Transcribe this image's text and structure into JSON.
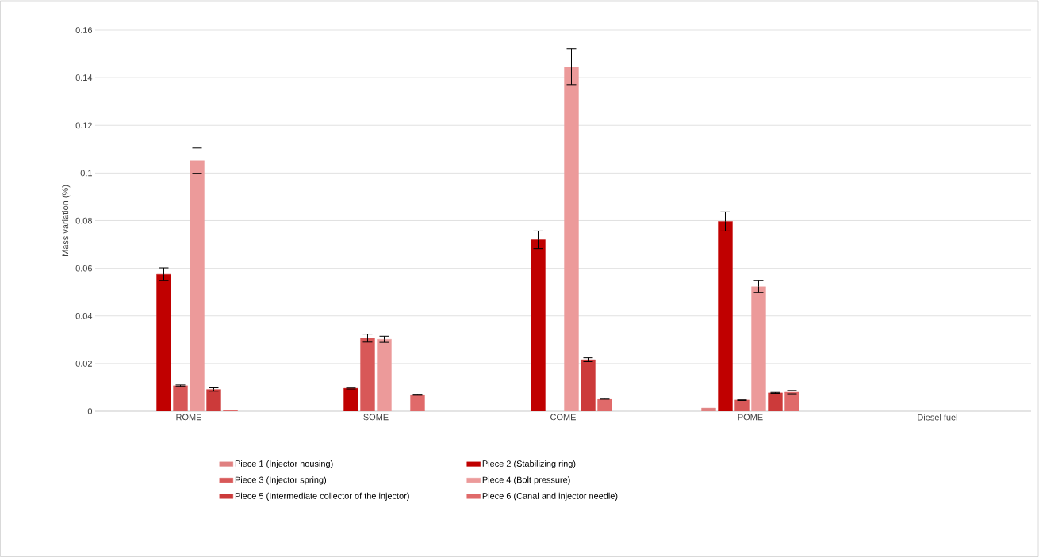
{
  "chart_data": {
    "type": "bar",
    "ylabel": "Mass variation (%)",
    "categories": [
      "ROME",
      "SOME",
      "COME",
      "POME",
      "Diesel fuel"
    ],
    "series": [
      {
        "name": "Piece 1 (Injector housing)",
        "color": "#e08080",
        "values": [
          null,
          null,
          null,
          0.0013,
          null
        ]
      },
      {
        "name": "Piece 2 (Stabilizing ring)",
        "color": "#c00000",
        "values": [
          0.0575,
          0.0096,
          0.072,
          0.0797,
          null
        ],
        "errors": [
          0.0027,
          0.0003,
          0.0037,
          0.004,
          null
        ]
      },
      {
        "name": "Piece 3 (Injector spring)",
        "color": "#d85858",
        "values": [
          0.0107,
          0.0307,
          null,
          0.0047,
          null
        ],
        "errors": [
          0.0003,
          0.0017,
          null,
          0.0002,
          null
        ]
      },
      {
        "name": "Piece 4 (Bolt pressure)",
        "color": "#ec9a9a",
        "values": [
          0.1052,
          0.0302,
          0.1446,
          0.0523,
          null
        ],
        "errors": [
          0.0053,
          0.0013,
          0.0075,
          0.0025,
          null
        ]
      },
      {
        "name": "Piece 5 (Intermediate collector of the injector)",
        "color": "#cc3a3a",
        "values": [
          0.0091,
          null,
          0.0216,
          0.0077,
          null
        ],
        "errors": [
          0.0007,
          null,
          0.0008,
          0.0002,
          null
        ]
      },
      {
        "name": "Piece 6 (Canal and injector needle)",
        "color": "#e06a6a",
        "values": [
          0.0004,
          0.0069,
          0.0052,
          0.008,
          null
        ],
        "errors": [
          null,
          0.0002,
          0.0002,
          0.0007,
          null
        ]
      }
    ],
    "ylim": [
      0,
      0.16
    ],
    "yticks": [
      0,
      0.02,
      0.04,
      0.06,
      0.08,
      0.1,
      0.12,
      0.14,
      0.16
    ],
    "grid": "y",
    "legend": "bottom"
  }
}
